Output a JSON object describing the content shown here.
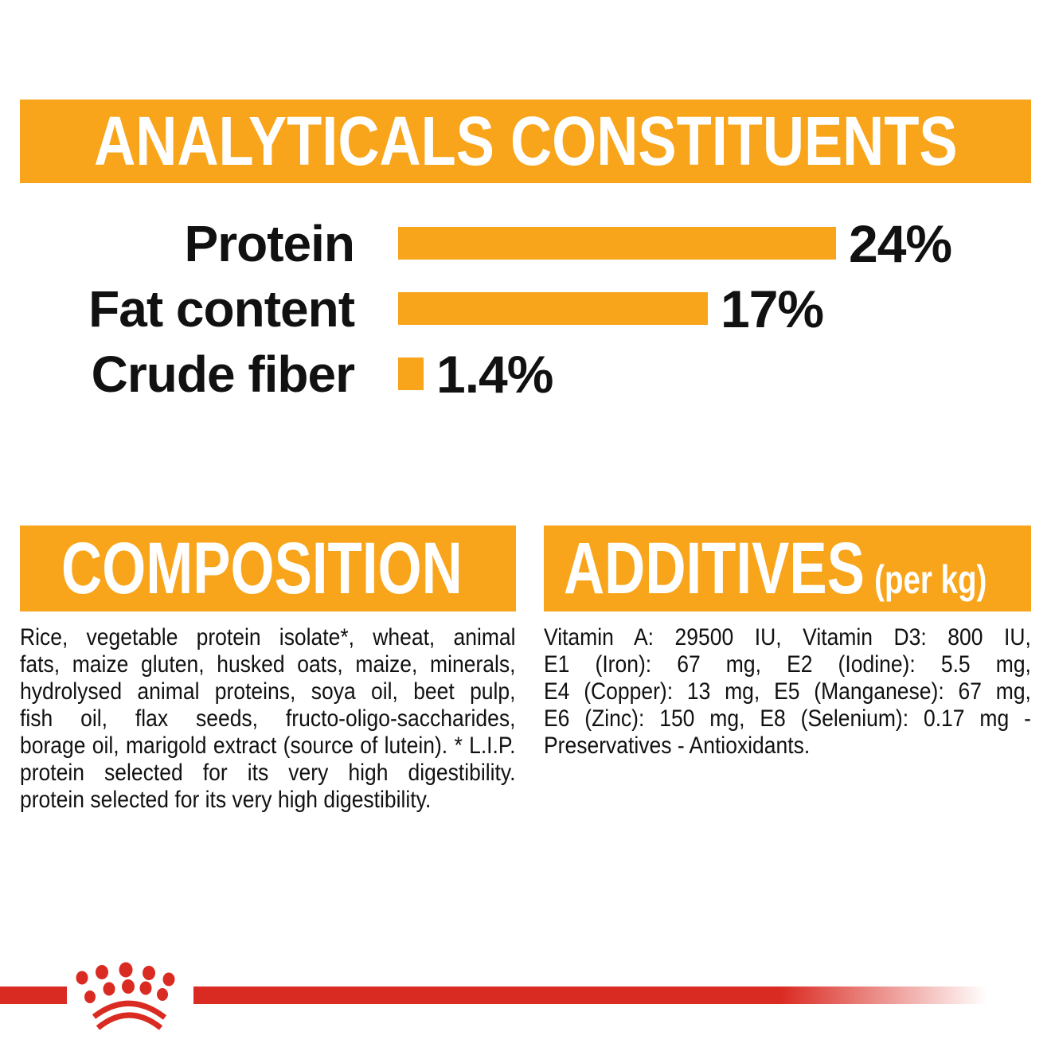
{
  "colors": {
    "orange": "#F9A51B",
    "red": "#DA2B22",
    "ink": "#111111",
    "paper": "#FFFFFF"
  },
  "chart_data": {
    "type": "bar",
    "orientation": "horizontal",
    "title": "ANALYTICALS CONSTITUENTS",
    "categories": [
      "Protein",
      "Fat content",
      "Crude fiber"
    ],
    "values": [
      24,
      17,
      1.4
    ],
    "value_labels": [
      "24%",
      "17%",
      "1.4%"
    ],
    "unit": "%",
    "xlim": [
      0,
      24
    ],
    "grid": false,
    "legend": false,
    "bar_color": "#F9A51B"
  },
  "composition": {
    "title": "COMPOSITION",
    "lines": [
      "Rice, vegetable protein isolate*, wheat, animal",
      "fats, maize gluten, husked oats, maize, minerals,",
      "hydrolysed animal proteins, soya oil, beet pulp,",
      "fish oil, flax seeds, fructo-oligo-saccharides,",
      "borage oil, marigold extract (source of lutein). * L.I.P.",
      "protein selected for its very high digestibility.",
      "protein selected for its very high digestibility."
    ]
  },
  "additives": {
    "title": "ADDITIVES",
    "title_suffix": "(per kg)",
    "lines": [
      "Vitamin A: 29500 IU, Vitamin D3: 800 IU,",
      "E1 (Iron): 67 mg, E2 (Iodine): 5.5 mg,",
      "E4 (Copper): 13 mg, E5 (Manganese): 67 mg,",
      "E6 (Zinc): 150 mg, E8 (Selenium): 0.17 mg -",
      "Preservatives - Antioxidants."
    ]
  },
  "footer": {
    "logo": "royal-canin-crown"
  }
}
